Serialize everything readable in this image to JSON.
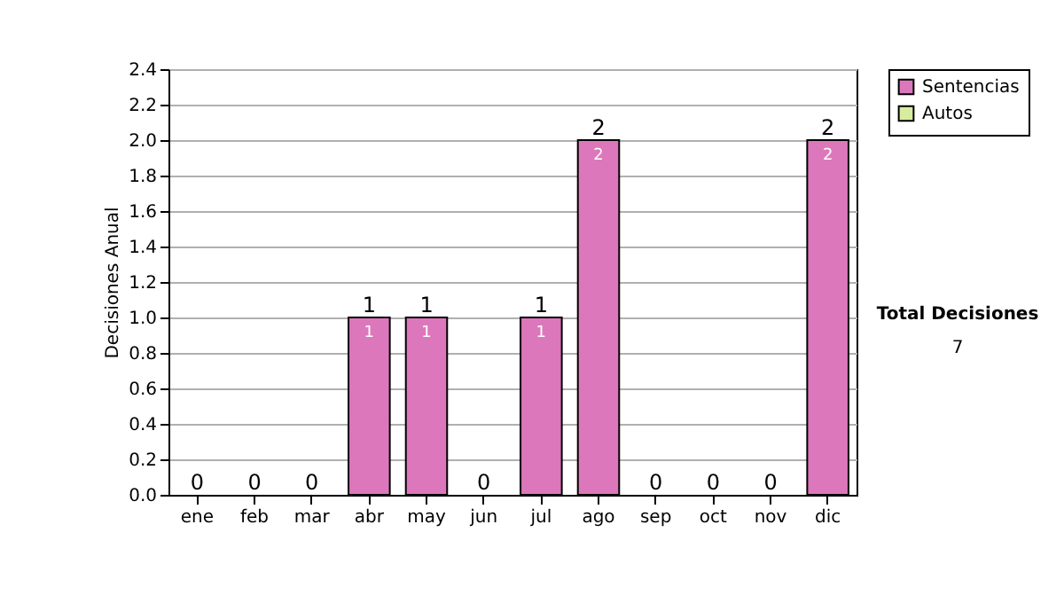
{
  "chart_data": {
    "type": "bar",
    "stacked": true,
    "ylabel": "Decisiones Anual",
    "categories": [
      "ene",
      "feb",
      "mar",
      "abr",
      "may",
      "jun",
      "jul",
      "ago",
      "sep",
      "oct",
      "nov",
      "dic"
    ],
    "series": [
      {
        "name": "Sentencias",
        "color": "#dd77bb",
        "values": [
          0,
          0,
          0,
          1,
          1,
          0,
          1,
          2,
          0,
          0,
          0,
          2
        ],
        "value_labels": [
          null,
          null,
          null,
          "1",
          "1",
          null,
          "1",
          "2",
          null,
          null,
          null,
          "2"
        ]
      },
      {
        "name": "Autos",
        "color": "#d8eca0",
        "values": [
          0,
          0,
          0,
          0,
          0,
          0,
          0,
          0,
          0,
          0,
          0,
          0
        ]
      }
    ],
    "totals": [
      "0",
      "0",
      "0",
      "1",
      "1",
      "0",
      "1",
      "2",
      "0",
      "0",
      "0",
      "2"
    ],
    "ylim": [
      0,
      2.4
    ],
    "yticks": [
      {
        "value": 0,
        "label": "0.0"
      },
      0.2,
      0.4,
      0.6,
      0.8,
      {
        "value": 1,
        "label": "1.0"
      },
      1.2,
      1.4,
      1.6,
      1.8,
      {
        "value": 2,
        "label": "2.0"
      },
      2.2,
      2.4
    ],
    "grid": "y",
    "legend": "right",
    "annotations": [
      "Total Decisiones",
      "7"
    ]
  }
}
